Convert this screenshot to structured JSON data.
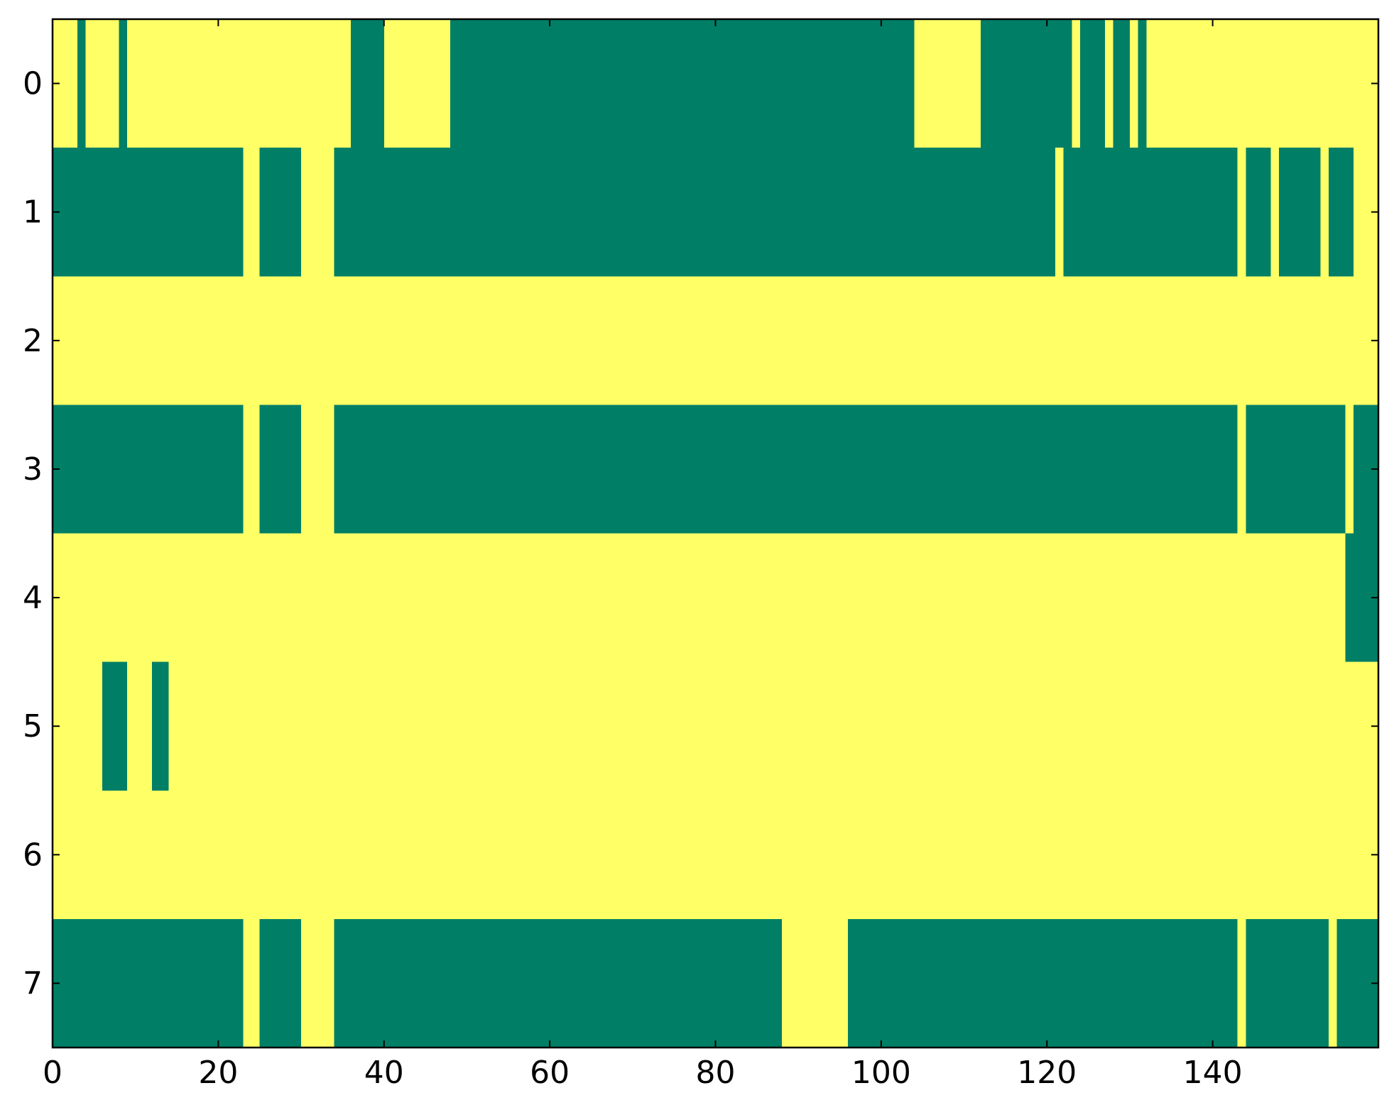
{
  "chart_data": {
    "type": "heatmap",
    "title": "",
    "xlabel": "",
    "ylabel": "",
    "x_range": [
      0,
      160
    ],
    "y_range": [
      0,
      8
    ],
    "x_ticks": [
      0,
      20,
      40,
      60,
      80,
      100,
      120,
      140
    ],
    "x_tick_labels": [
      "0",
      "20",
      "40",
      "60",
      "80",
      "100",
      "120",
      "140"
    ],
    "y_ticks": [
      0,
      1,
      2,
      3,
      4,
      5,
      6,
      7
    ],
    "y_tick_labels": [
      "0",
      "1",
      "2",
      "3",
      "4",
      "5",
      "6",
      "7"
    ],
    "grid": false,
    "legend": "none",
    "colors": {
      "on": "#007f66",
      "off": "#ffff66"
    },
    "rows": [
      {
        "row": 0,
        "green_runs": [
          [
            3,
            4
          ],
          [
            8,
            9
          ],
          [
            36,
            40
          ],
          [
            48,
            104
          ],
          [
            112,
            123
          ],
          [
            124,
            127
          ],
          [
            128,
            130
          ],
          [
            131,
            132
          ]
        ]
      },
      {
        "row": 1,
        "green_runs": [
          [
            0,
            23
          ],
          [
            25,
            30
          ],
          [
            34,
            121
          ],
          [
            122,
            143
          ],
          [
            144,
            147
          ],
          [
            148,
            153
          ],
          [
            154,
            157
          ]
        ]
      },
      {
        "row": 2,
        "green_runs": []
      },
      {
        "row": 3,
        "green_runs": [
          [
            0,
            23
          ],
          [
            25,
            30
          ],
          [
            34,
            143
          ],
          [
            144,
            156
          ],
          [
            157,
            160
          ]
        ]
      },
      {
        "row": 4,
        "green_runs": [
          [
            156,
            160
          ]
        ]
      },
      {
        "row": 5,
        "green_runs": [
          [
            6,
            9
          ],
          [
            12,
            14
          ]
        ]
      },
      {
        "row": 6,
        "green_runs": []
      },
      {
        "row": 7,
        "green_runs": [
          [
            0,
            23
          ],
          [
            25,
            30
          ],
          [
            34,
            88
          ],
          [
            96,
            143
          ],
          [
            144,
            154
          ],
          [
            155,
            160
          ]
        ]
      }
    ]
  }
}
